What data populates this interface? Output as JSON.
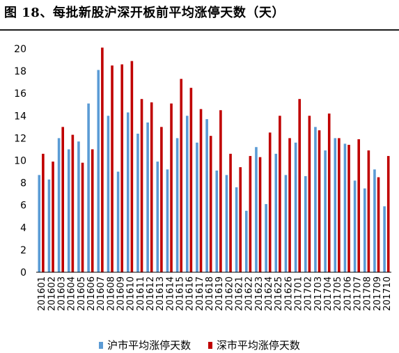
{
  "title": "图 18、每批新股沪深开板前平均涨停天数（天）",
  "colors": {
    "sh": "#5b9bd5",
    "sz": "#c00000",
    "axis": "#000000"
  },
  "chart_data": {
    "type": "bar",
    "categories": [
      "201601",
      "201602",
      "201603",
      "201604",
      "201605",
      "201606",
      "201607",
      "201608",
      "201609",
      "201610",
      "201611",
      "201612",
      "201613",
      "201614",
      "201615",
      "201616",
      "201617",
      "201618",
      "201619",
      "201620",
      "201621",
      "201622",
      "201623",
      "201624",
      "201625",
      "201626",
      "201701",
      "201702",
      "201703",
      "201704",
      "201705",
      "201706",
      "201707",
      "201708",
      "201709",
      "201710"
    ],
    "series": [
      {
        "name": "沪市平均涨停天数",
        "color": "#5b9bd5",
        "values": [
          8.7,
          8.3,
          12.0,
          11.0,
          11.7,
          15.1,
          18.1,
          14.0,
          9.0,
          14.3,
          12.4,
          13.4,
          9.9,
          9.2,
          12.0,
          14.0,
          11.6,
          13.7,
          9.1,
          8.7,
          7.6,
          5.5,
          11.2,
          6.1,
          10.6,
          8.7,
          11.6,
          8.6,
          13.0,
          10.9,
          12.0,
          11.5,
          8.2,
          7.5,
          9.2,
          5.9
        ]
      },
      {
        "name": "深市平均涨停天数",
        "color": "#c00000",
        "values": [
          10.6,
          9.9,
          13.0,
          12.3,
          9.8,
          11.0,
          20.1,
          18.5,
          18.6,
          18.9,
          15.5,
          15.2,
          13.0,
          15.1,
          17.3,
          16.5,
          14.6,
          12.2,
          14.5,
          10.6,
          9.4,
          10.4,
          10.3,
          12.5,
          14.0,
          12.0,
          15.5,
          14.0,
          12.7,
          14.2,
          12.0,
          11.4,
          11.9,
          10.9,
          8.5,
          10.4
        ]
      }
    ],
    "yticks": [
      "0",
      "2",
      "4",
      "6",
      "8",
      "10",
      "12",
      "14",
      "16",
      "18",
      "20"
    ],
    "ylim": [
      0,
      20
    ],
    "grid": false,
    "legend": "bottom"
  }
}
